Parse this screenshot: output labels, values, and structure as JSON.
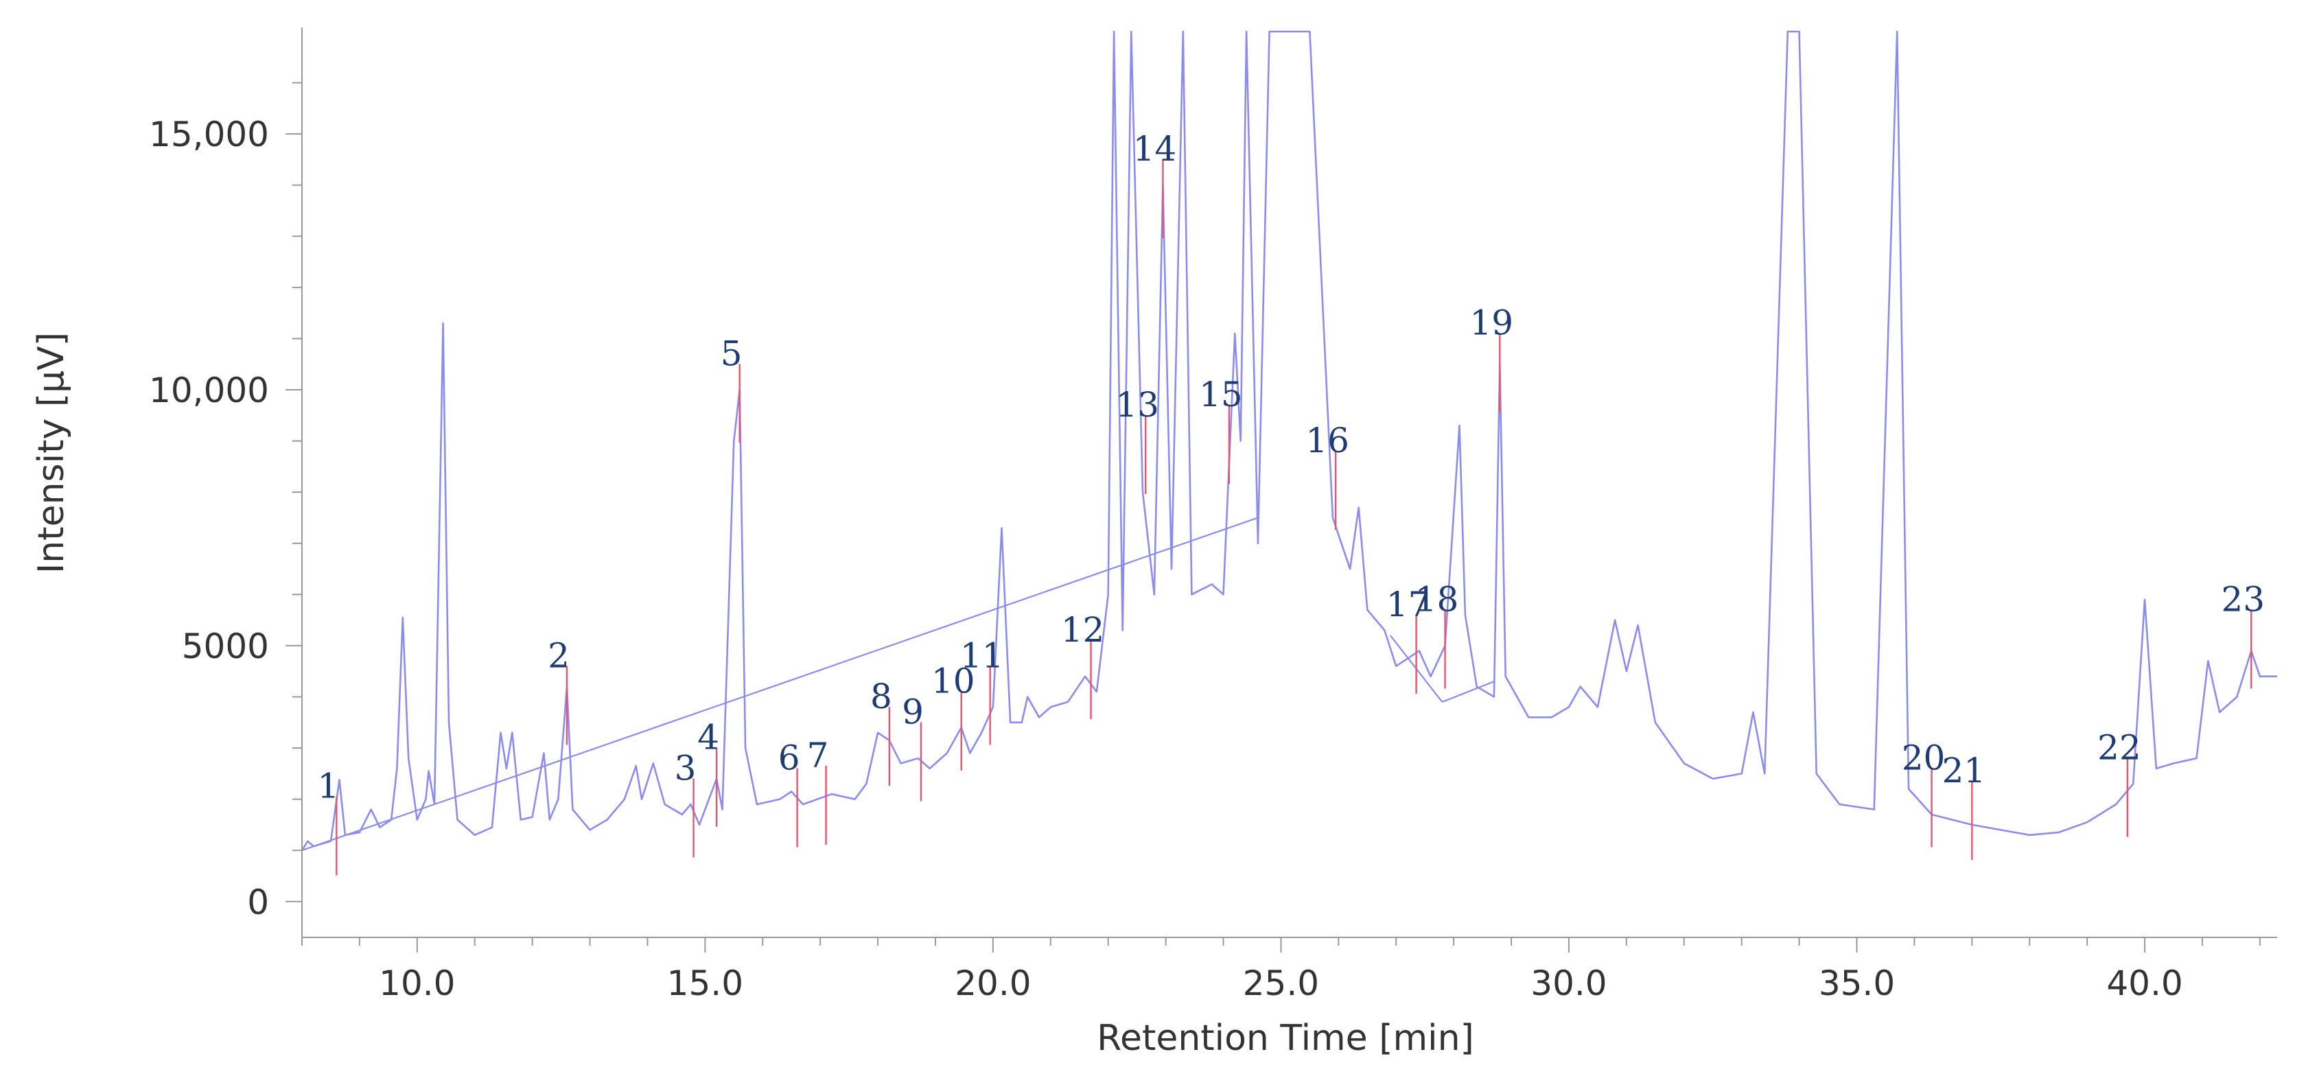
{
  "chart_data": {
    "type": "line",
    "title": "",
    "xlabel": "Retention Time [min]",
    "ylabel": "Intensity [µV]",
    "xlim": [
      8.0,
      42.3
    ],
    "ylim": [
      -700,
      17000
    ],
    "x_ticks": [
      {
        "value": 10,
        "label": "10.0"
      },
      {
        "value": 15,
        "label": "15.0"
      },
      {
        "value": 20,
        "label": "20.0"
      },
      {
        "value": 25,
        "label": "25.0"
      },
      {
        "value": 30,
        "label": "30.0"
      },
      {
        "value": 35,
        "label": "35.0"
      },
      {
        "value": 40,
        "label": "40.0"
      }
    ],
    "y_ticks": [
      {
        "value": 0,
        "label": "0"
      },
      {
        "value": 5000,
        "label": "5000"
      },
      {
        "value": 10000,
        "label": "10,000"
      },
      {
        "value": 15000,
        "label": "15,000"
      }
    ],
    "grid": false,
    "series": [
      {
        "color": "#8c8cf0",
        "points": [
          [
            8.0,
            1000
          ],
          [
            8.1,
            1180
          ],
          [
            8.2,
            1080
          ],
          [
            8.5,
            1180
          ],
          [
            8.65,
            2380
          ],
          [
            8.75,
            1300
          ],
          [
            9.0,
            1350
          ],
          [
            9.2,
            1800
          ],
          [
            9.35,
            1450
          ],
          [
            9.55,
            1600
          ],
          [
            9.65,
            2600
          ],
          [
            9.75,
            5550
          ],
          [
            9.85,
            2800
          ],
          [
            10.0,
            1600
          ],
          [
            10.15,
            2000
          ],
          [
            10.2,
            2550
          ],
          [
            10.3,
            1900
          ],
          [
            10.45,
            11300
          ],
          [
            10.55,
            3500
          ],
          [
            10.7,
            1600
          ],
          [
            11.0,
            1300
          ],
          [
            11.3,
            1450
          ],
          [
            11.45,
            3300
          ],
          [
            11.55,
            2600
          ],
          [
            11.65,
            3300
          ],
          [
            11.8,
            1600
          ],
          [
            12.0,
            1650
          ],
          [
            12.2,
            2900
          ],
          [
            12.3,
            1600
          ],
          [
            12.45,
            2000
          ],
          [
            12.6,
            4200
          ],
          [
            12.7,
            1800
          ],
          [
            13.0,
            1400
          ],
          [
            13.3,
            1600
          ],
          [
            13.6,
            2000
          ],
          [
            13.8,
            2650
          ],
          [
            13.9,
            2000
          ],
          [
            14.1,
            2700
          ],
          [
            14.3,
            1900
          ],
          [
            14.6,
            1700
          ],
          [
            14.75,
            1900
          ],
          [
            14.9,
            1500
          ],
          [
            15.2,
            2400
          ],
          [
            15.3,
            1800
          ],
          [
            15.5,
            9000
          ],
          [
            15.6,
            10000
          ],
          [
            15.7,
            3000
          ],
          [
            15.9,
            1900
          ],
          [
            16.3,
            2000
          ],
          [
            16.5,
            2150
          ],
          [
            16.7,
            1900
          ],
          [
            17.2,
            2100
          ],
          [
            17.6,
            2000
          ],
          [
            17.8,
            2300
          ],
          [
            18.0,
            3300
          ],
          [
            18.2,
            3150
          ],
          [
            18.4,
            2700
          ],
          [
            18.7,
            2800
          ],
          [
            18.9,
            2600
          ],
          [
            19.2,
            2900
          ],
          [
            19.45,
            3400
          ],
          [
            19.6,
            2900
          ],
          [
            19.8,
            3300
          ],
          [
            20.0,
            3800
          ],
          [
            20.15,
            7300
          ],
          [
            20.3,
            3500
          ],
          [
            20.5,
            3500
          ],
          [
            20.6,
            4000
          ],
          [
            20.8,
            3600
          ],
          [
            21.0,
            3800
          ],
          [
            21.3,
            3900
          ],
          [
            21.6,
            4400
          ],
          [
            21.8,
            4100
          ],
          [
            22.0,
            6000
          ],
          [
            22.1,
            17000
          ],
          [
            22.25,
            5300
          ],
          [
            22.4,
            17000
          ],
          [
            22.6,
            8000
          ],
          [
            22.8,
            6000
          ],
          [
            22.95,
            14000
          ],
          [
            23.1,
            6500
          ],
          [
            23.3,
            17000
          ],
          [
            23.45,
            6000
          ],
          [
            23.8,
            6200
          ],
          [
            24.0,
            6000
          ],
          [
            24.2,
            11100
          ],
          [
            24.3,
            9000
          ],
          [
            24.4,
            17000
          ],
          [
            24.6,
            7000
          ],
          [
            24.8,
            17000
          ],
          [
            25.5,
            17000
          ],
          [
            25.9,
            7500
          ],
          [
            26.2,
            6500
          ],
          [
            26.35,
            7700
          ],
          [
            26.5,
            5700
          ],
          [
            26.8,
            5300
          ],
          [
            27.0,
            4600
          ],
          [
            27.4,
            4900
          ],
          [
            27.6,
            4400
          ],
          [
            27.85,
            5000
          ],
          [
            28.1,
            9300
          ],
          [
            28.2,
            5600
          ],
          [
            28.4,
            4200
          ],
          [
            28.7,
            4000
          ],
          [
            28.8,
            10500
          ],
          [
            28.9,
            4400
          ],
          [
            29.3,
            3600
          ],
          [
            29.7,
            3600
          ],
          [
            30.0,
            3800
          ],
          [
            30.2,
            4200
          ],
          [
            30.5,
            3800
          ],
          [
            30.8,
            5500
          ],
          [
            31.0,
            4500
          ],
          [
            31.2,
            5400
          ],
          [
            31.5,
            3500
          ],
          [
            32.0,
            2700
          ],
          [
            32.5,
            2400
          ],
          [
            33.0,
            2500
          ],
          [
            33.2,
            3700
          ],
          [
            33.4,
            2500
          ],
          [
            33.8,
            17000
          ],
          [
            34.0,
            17000
          ],
          [
            34.3,
            2500
          ],
          [
            34.7,
            1900
          ],
          [
            35.0,
            1850
          ],
          [
            35.3,
            1800
          ],
          [
            35.7,
            17000
          ],
          [
            35.9,
            2200
          ],
          [
            36.3,
            1700
          ],
          [
            37.0,
            1500
          ],
          [
            37.5,
            1400
          ],
          [
            38.0,
            1300
          ],
          [
            38.5,
            1350
          ],
          [
            39.0,
            1550
          ],
          [
            39.5,
            1900
          ],
          [
            39.8,
            2300
          ],
          [
            40.0,
            5900
          ],
          [
            40.2,
            2600
          ],
          [
            40.5,
            2700
          ],
          [
            40.9,
            2800
          ],
          [
            41.1,
            4700
          ],
          [
            41.3,
            3700
          ],
          [
            41.6,
            4000
          ],
          [
            41.85,
            4900
          ],
          [
            42.0,
            4400
          ],
          [
            42.3,
            4400
          ]
        ]
      }
    ],
    "baseline_segments": [
      [
        [
          8.0,
          1000
        ],
        [
          24.6,
          7500
        ]
      ],
      [
        [
          26.9,
          5200
        ],
        [
          27.8,
          3900
        ]
      ],
      [
        [
          27.8,
          3900
        ],
        [
          28.7,
          4300
        ]
      ]
    ],
    "annotations": [
      {
        "label": "1",
        "x": 8.6,
        "y": 1250
      },
      {
        "label": "2",
        "x": 12.6,
        "y": 3800
      },
      {
        "label": "3",
        "x": 14.8,
        "y": 1600
      },
      {
        "label": "4",
        "x": 15.2,
        "y": 2200
      },
      {
        "label": "5",
        "x": 15.6,
        "y": 9700
      },
      {
        "label": "6",
        "x": 16.6,
        "y": 1800
      },
      {
        "label": "7",
        "x": 17.1,
        "y": 1850
      },
      {
        "label": "8",
        "x": 18.2,
        "y": 3000
      },
      {
        "label": "9",
        "x": 18.75,
        "y": 2700
      },
      {
        "label": "10",
        "x": 19.45,
        "y": 3300
      },
      {
        "label": "11",
        "x": 19.95,
        "y": 3800
      },
      {
        "label": "12",
        "x": 21.7,
        "y": 4300
      },
      {
        "label": "13",
        "x": 22.65,
        "y": 8700
      },
      {
        "label": "14",
        "x": 22.95,
        "y": 13700
      },
      {
        "label": "15",
        "x": 24.1,
        "y": 8900
      },
      {
        "label": "16",
        "x": 25.95,
        "y": 8000
      },
      {
        "label": "17",
        "x": 27.35,
        "y": 4800
      },
      {
        "label": "18",
        "x": 27.85,
        "y": 4900
      },
      {
        "label": "19",
        "x": 28.8,
        "y": 10300
      },
      {
        "label": "20",
        "x": 36.3,
        "y": 1800
      },
      {
        "label": "21",
        "x": 37.0,
        "y": 1550
      },
      {
        "label": "22",
        "x": 39.7,
        "y": 2000
      },
      {
        "label": "23",
        "x": 41.85,
        "y": 4900
      }
    ],
    "colors": {
      "trace": "#8c8cf0",
      "marker": "#e8546f",
      "label": "#1f3b73",
      "axis": "#999999"
    }
  }
}
